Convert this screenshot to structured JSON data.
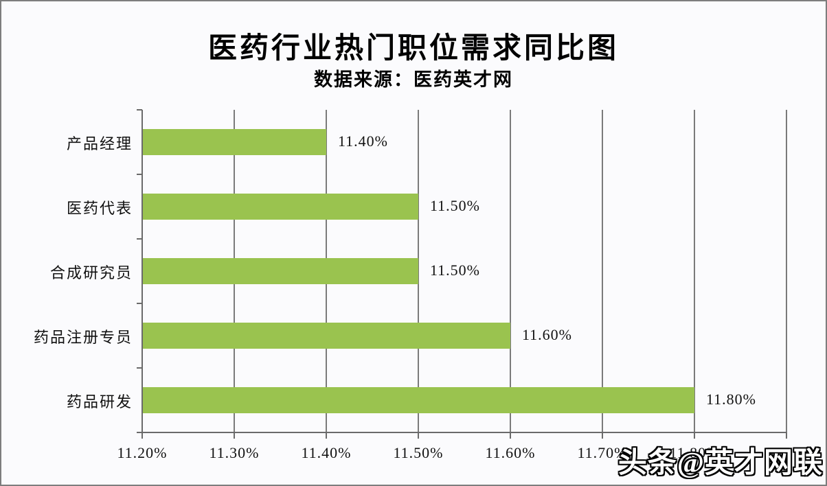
{
  "page": {
    "background": "#fbfbfd",
    "border_color": "#7d7d7d"
  },
  "chart_data": {
    "type": "bar",
    "orientation": "horizontal",
    "title": "医药行业热门职位需求同比图",
    "subtitle": "数据来源：医药英才网",
    "categories": [
      "产品经理",
      "医药代表",
      "合成研究员",
      "药品注册专员",
      "药品研发"
    ],
    "values": [
      11.4,
      11.5,
      11.5,
      11.6,
      11.8
    ],
    "value_labels": [
      "11.40%",
      "11.50%",
      "11.50%",
      "11.60%",
      "11.80%"
    ],
    "xlabel": "",
    "ylabel": "",
    "xlim": [
      11.2,
      11.9
    ],
    "xtick_values": [
      11.2,
      11.3,
      11.4,
      11.5,
      11.6,
      11.7,
      11.8,
      11.9
    ],
    "xtick_labels": [
      "11.20%",
      "11.30%",
      "11.40%",
      "11.50%",
      "11.60%",
      "11.70%",
      "11.80%",
      ""
    ],
    "grid": true,
    "legend": false,
    "bar_color": "#9ac34f",
    "grid_color": "#7a7a7a",
    "axis_color": "#6a6a6a",
    "text_color": "#111111"
  },
  "watermark": {
    "text": "头条@英才网联"
  }
}
